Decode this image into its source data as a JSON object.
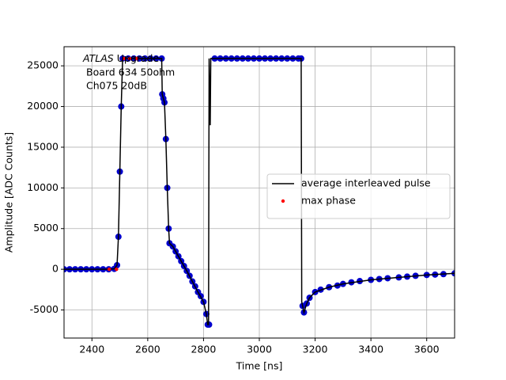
{
  "chart_data": {
    "type": "line",
    "xlabel": "Time [ns]",
    "ylabel": "Amplitude [ADC Counts]",
    "annotation": {
      "italic": "ATLAS",
      "lines": [
        "Upgrade",
        "Board 634 50ohm",
        "Ch075 20dB"
      ]
    },
    "xlim": [
      2300,
      3700
    ],
    "xticks": [
      2400,
      2600,
      2800,
      3000,
      3200,
      3400,
      3600
    ],
    "ylim": [
      -8450,
      27350
    ],
    "yticks": [
      -5000,
      0,
      5000,
      10000,
      15000,
      20000,
      25000
    ],
    "grid": true,
    "legend": "center right",
    "series": [
      {
        "name": "average interleaved pulse",
        "color": "#000000",
        "style": "line",
        "x": [
          2300,
          2350,
          2400,
          2450,
          2480,
          2490,
          2495,
          2500,
          2505,
          2510,
          2550,
          2600,
          2650,
          2652,
          2660,
          2665,
          2670,
          2675,
          2678,
          2690,
          2700,
          2720,
          2740,
          2760,
          2780,
          2800,
          2810,
          2815,
          2818,
          2820,
          2824,
          2826,
          2900,
          3000,
          3100,
          3150,
          3152,
          3160,
          3170,
          3180,
          3200,
          3250,
          3300,
          3400,
          3500,
          3600,
          3700
        ],
        "values": [
          0,
          0,
          0,
          0,
          50,
          500,
          4000,
          12000,
          20000,
          25900,
          25900,
          25900,
          25900,
          21500,
          20500,
          16000,
          10000,
          5000,
          3200,
          2800,
          2200,
          1000,
          -200,
          -1500,
          -2800,
          -4000,
          -5500,
          -6800,
          -6800,
          25900,
          17700,
          25900,
          25900,
          25900,
          25900,
          25900,
          -4000,
          -5300,
          -4200,
          -3500,
          -2800,
          -2200,
          -1800,
          -1300,
          -1000,
          -700,
          -500
        ]
      },
      {
        "color": "#0000cc",
        "style": "dots",
        "x": [
          2300,
          2320,
          2340,
          2360,
          2380,
          2400,
          2420,
          2440,
          2460,
          2480,
          2490,
          2495,
          2500,
          2505,
          2510,
          2530,
          2550,
          2570,
          2590,
          2610,
          2630,
          2650,
          2652,
          2656,
          2660,
          2665,
          2670,
          2675,
          2678,
          2690,
          2700,
          2710,
          2720,
          2730,
          2740,
          2750,
          2760,
          2770,
          2780,
          2790,
          2800,
          2810,
          2815,
          2820,
          2840,
          2860,
          2880,
          2900,
          2920,
          2940,
          2960,
          2980,
          3000,
          3020,
          3040,
          3060,
          3080,
          3100,
          3120,
          3140,
          3150,
          3155,
          3160,
          3170,
          3180,
          3200,
          3220,
          3250,
          3280,
          3300,
          3330,
          3360,
          3400,
          3430,
          3460,
          3500,
          3530,
          3560,
          3600,
          3630,
          3660,
          3700
        ],
        "values": [
          0,
          0,
          0,
          0,
          0,
          0,
          0,
          0,
          0,
          50,
          500,
          4000,
          12000,
          20000,
          25900,
          25900,
          25900,
          25900,
          25900,
          25900,
          25900,
          25900,
          21500,
          21000,
          20500,
          16000,
          10000,
          5000,
          3200,
          2800,
          2200,
          1600,
          1000,
          400,
          -200,
          -800,
          -1500,
          -2100,
          -2800,
          -3300,
          -4000,
          -5500,
          -6800,
          -6800,
          25900,
          25900,
          25900,
          25900,
          25900,
          25900,
          25900,
          25900,
          25900,
          25900,
          25900,
          25900,
          25900,
          25900,
          25900,
          25900,
          25900,
          -4500,
          -5300,
          -4200,
          -3500,
          -2800,
          -2500,
          -2200,
          -2000,
          -1800,
          -1600,
          -1450,
          -1300,
          -1200,
          -1100,
          -1000,
          -900,
          -800,
          -700,
          -650,
          -600,
          -500
        ]
      },
      {
        "name": "max phase",
        "color": "#ff0000",
        "style": "points",
        "x": [
          2462,
          2488,
          2515,
          2535,
          2560
        ],
        "values": [
          0,
          0,
          25900,
          25900,
          25900
        ]
      }
    ]
  }
}
